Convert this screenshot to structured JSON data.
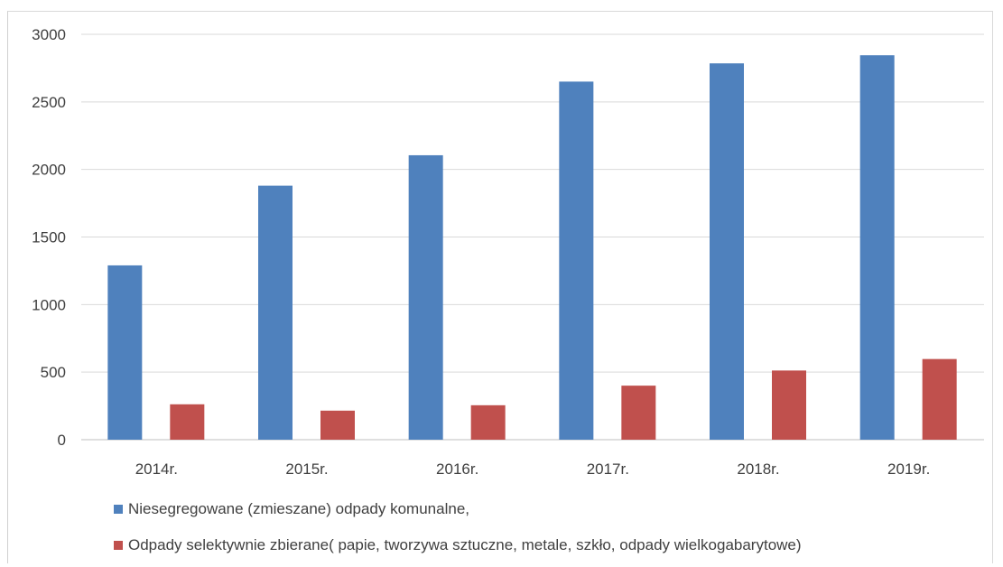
{
  "chart_data": {
    "type": "bar",
    "categories": [
      "2014r.",
      "2015r.",
      "2016r.",
      "2017r.",
      "2018r.",
      "2019r."
    ],
    "series": [
      {
        "name": "Niesegregowane (zmieszane) odpady komunalne,",
        "color": "#4F81BD",
        "values": [
          1290,
          1880,
          2105,
          2650,
          2785,
          2845
        ]
      },
      {
        "name": "Odpady selektywnie zbierane( papie, tworzywa sztuczne, metale, szkło, odpady wielkogabarytowe)",
        "color": "#C0504D",
        "values": [
          262,
          215,
          255,
          400,
          512,
          597
        ]
      }
    ],
    "ylim": [
      0,
      3000
    ],
    "yticks": [
      0,
      500,
      1000,
      1500,
      2000,
      2500,
      3000
    ],
    "grid": true,
    "legend_position": "bottom-left"
  }
}
